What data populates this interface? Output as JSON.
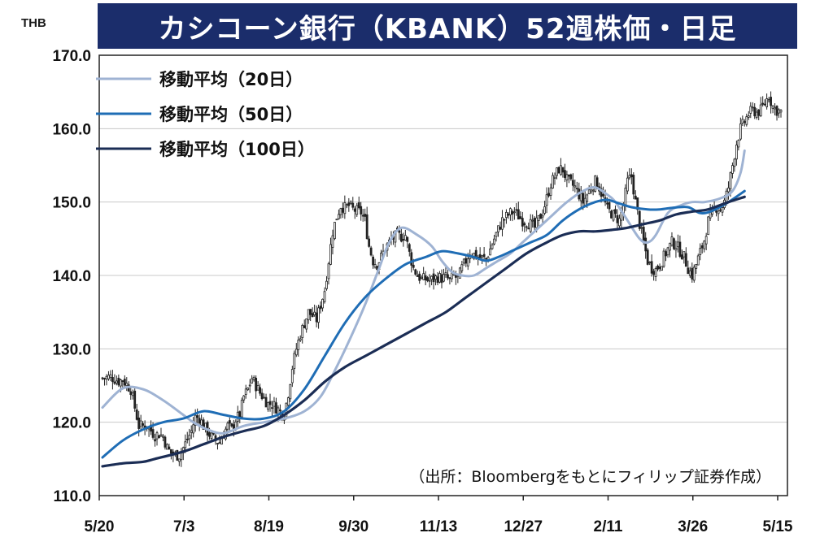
{
  "chart_data": {
    "type": "candlestick",
    "title": "カシコーン銀行（KBANK）52週株価・日足",
    "unit": "THB",
    "ylim": [
      110,
      170
    ],
    "yticks": [
      "170.0",
      "160.0",
      "150.0",
      "140.0",
      "130.0",
      "120.0",
      "110.0"
    ],
    "ytick_values": [
      170,
      160,
      150,
      140,
      130,
      120,
      110
    ],
    "xticks": [
      "5/20",
      "7/3",
      "8/19",
      "9/30",
      "11/13",
      "12/27",
      "2/11",
      "3/26",
      "5/15"
    ],
    "grid": true,
    "legend_position": "top-left",
    "source": "（出所：Bloombergをもとにフィリップ証券作成）",
    "colors": {
      "banner": "#1b2d6b",
      "candle_up": "#ffffff",
      "candle_down": "#222222",
      "ma20": "#9fb3d3",
      "ma50": "#1f6db5",
      "ma100": "#1b2d55",
      "grid": "#c8c8c8"
    },
    "series": [
      {
        "name": "移動平均（20日）",
        "key": "ma20",
        "points": [
          [
            0,
            122
          ],
          [
            10,
            124.6
          ],
          [
            20,
            124.5
          ],
          [
            30,
            123
          ],
          [
            40,
            121
          ],
          [
            45,
            120
          ],
          [
            52,
            119
          ],
          [
            60,
            118.5
          ],
          [
            70,
            119.5
          ],
          [
            80,
            120
          ],
          [
            90,
            120.5
          ],
          [
            100,
            121.5
          ],
          [
            108,
            123.5
          ],
          [
            115,
            127
          ],
          [
            122,
            131
          ],
          [
            130,
            136
          ],
          [
            137,
            141
          ],
          [
            142,
            144.5
          ],
          [
            148,
            146.5
          ],
          [
            156,
            145.5
          ],
          [
            163,
            144
          ],
          [
            168,
            142
          ],
          [
            173,
            140.5
          ],
          [
            178,
            140
          ],
          [
            184,
            140
          ],
          [
            190,
            141
          ],
          [
            196,
            142
          ],
          [
            202,
            143
          ],
          [
            208,
            144.5
          ],
          [
            216,
            146.5
          ],
          [
            222,
            148
          ],
          [
            230,
            150
          ],
          [
            238,
            151.5
          ],
          [
            244,
            152
          ],
          [
            250,
            151
          ],
          [
            254,
            150
          ],
          [
            260,
            147.5
          ],
          [
            266,
            145
          ],
          [
            270,
            144.5
          ],
          [
            274,
            145.5
          ],
          [
            280,
            148.5
          ],
          [
            286,
            149.5
          ],
          [
            292,
            150
          ],
          [
            298,
            150
          ],
          [
            306,
            150.5
          ],
          [
            312,
            151.5
          ],
          [
            316,
            154
          ],
          [
            318,
            157
          ]
        ]
      },
      {
        "name": "移動平均（50日）",
        "key": "ma50",
        "points": [
          [
            0,
            115.2
          ],
          [
            10,
            117.5
          ],
          [
            20,
            119
          ],
          [
            30,
            120
          ],
          [
            40,
            120.5
          ],
          [
            50,
            121.5
          ],
          [
            60,
            121
          ],
          [
            70,
            120.5
          ],
          [
            80,
            120.5
          ],
          [
            90,
            121.5
          ],
          [
            100,
            124.5
          ],
          [
            110,
            129
          ],
          [
            120,
            133.5
          ],
          [
            130,
            137
          ],
          [
            140,
            139.5
          ],
          [
            150,
            141.5
          ],
          [
            160,
            142.5
          ],
          [
            168,
            143.3
          ],
          [
            176,
            143
          ],
          [
            184,
            142.5
          ],
          [
            190,
            142
          ],
          [
            196,
            142.5
          ],
          [
            204,
            143.5
          ],
          [
            212,
            144.5
          ],
          [
            220,
            145.5
          ],
          [
            228,
            147.5
          ],
          [
            236,
            149
          ],
          [
            244,
            150
          ],
          [
            250,
            150.3
          ],
          [
            256,
            149.8
          ],
          [
            262,
            149.3
          ],
          [
            270,
            149
          ],
          [
            276,
            149
          ],
          [
            282,
            149.2
          ],
          [
            290,
            149.3
          ],
          [
            296,
            148.5
          ],
          [
            302,
            148.8
          ],
          [
            310,
            150
          ],
          [
            318,
            151.5
          ]
        ]
      },
      {
        "name": "移動平均（100日）",
        "key": "ma100",
        "points": [
          [
            0,
            114
          ],
          [
            10,
            114.4
          ],
          [
            20,
            114.6
          ],
          [
            26,
            115
          ],
          [
            40,
            116
          ],
          [
            50,
            117
          ],
          [
            60,
            118
          ],
          [
            70,
            118.8
          ],
          [
            80,
            119.5
          ],
          [
            90,
            121
          ],
          [
            100,
            123
          ],
          [
            110,
            125.5
          ],
          [
            120,
            127.5
          ],
          [
            130,
            129
          ],
          [
            140,
            130.5
          ],
          [
            150,
            132
          ],
          [
            160,
            133.5
          ],
          [
            170,
            135
          ],
          [
            180,
            137
          ],
          [
            190,
            139
          ],
          [
            200,
            141
          ],
          [
            210,
            143
          ],
          [
            220,
            144.5
          ],
          [
            228,
            145.5
          ],
          [
            236,
            146
          ],
          [
            244,
            146
          ],
          [
            252,
            146.2
          ],
          [
            260,
            146.5
          ],
          [
            268,
            147
          ],
          [
            276,
            147.5
          ],
          [
            284,
            148.3
          ],
          [
            292,
            148.7
          ],
          [
            300,
            149
          ],
          [
            310,
            150
          ],
          [
            318,
            150.7
          ]
        ]
      }
    ],
    "candles_path": [
      [
        0,
        126
      ],
      [
        4,
        126.2
      ],
      [
        8,
        125.6
      ],
      [
        10,
        125.8
      ],
      [
        14,
        124.5
      ],
      [
        16,
        122
      ],
      [
        18,
        119.5
      ],
      [
        22,
        119.5
      ],
      [
        26,
        118.2
      ],
      [
        28,
        118.4
      ],
      [
        30,
        118.1
      ],
      [
        32,
        116.5
      ],
      [
        34,
        115.8
      ],
      [
        36,
        115.5
      ],
      [
        38,
        115.5
      ],
      [
        40,
        116.5
      ],
      [
        44,
        118.8
      ],
      [
        46,
        120.7
      ],
      [
        48,
        120.6
      ],
      [
        50,
        119.5
      ],
      [
        54,
        118
      ],
      [
        56,
        117.5
      ],
      [
        58,
        117.3
      ],
      [
        60,
        118.5
      ],
      [
        62,
        119.5
      ],
      [
        64,
        119
      ],
      [
        66,
        120.4
      ],
      [
        68,
        121
      ],
      [
        70,
        123.5
      ],
      [
        72,
        124.5
      ],
      [
        74,
        126
      ],
      [
        76,
        125
      ],
      [
        78,
        124
      ],
      [
        82,
        122.5
      ],
      [
        84,
        122.5
      ],
      [
        86,
        122
      ],
      [
        88,
        121.5
      ],
      [
        90,
        121.1
      ],
      [
        92,
        124
      ],
      [
        94,
        127.5
      ],
      [
        96,
        130
      ],
      [
        98,
        132
      ],
      [
        100,
        133.5
      ],
      [
        102,
        135
      ],
      [
        104,
        134.5
      ],
      [
        106,
        134
      ],
      [
        108,
        136
      ],
      [
        110,
        138
      ],
      [
        112,
        142
      ],
      [
        114,
        146
      ],
      [
        116,
        148
      ],
      [
        118,
        149.5
      ],
      [
        120,
        149.2
      ],
      [
        122,
        149.5
      ],
      [
        124,
        149
      ],
      [
        126,
        148.8
      ],
      [
        128,
        148.6
      ],
      [
        130,
        147.5
      ],
      [
        132,
        144
      ],
      [
        134,
        142
      ],
      [
        136,
        141.5
      ],
      [
        138,
        142.5
      ],
      [
        140,
        143.7
      ],
      [
        142,
        144.5
      ],
      [
        144,
        145.1
      ],
      [
        146,
        145.5
      ],
      [
        148,
        145.3
      ],
      [
        150,
        145.5
      ],
      [
        152,
        143
      ],
      [
        154,
        141
      ],
      [
        156,
        140
      ],
      [
        158,
        139.5
      ],
      [
        160,
        139.5
      ],
      [
        162,
        139.3
      ],
      [
        164,
        139.5
      ],
      [
        166,
        139.8
      ],
      [
        168,
        139.6
      ],
      [
        170,
        139.8
      ],
      [
        172,
        139.3
      ],
      [
        174,
        140
      ],
      [
        176,
        139.5
      ],
      [
        178,
        141
      ],
      [
        180,
        142
      ],
      [
        182,
        143.2
      ],
      [
        186,
        142.5
      ],
      [
        190,
        142.2
      ],
      [
        194,
        145
      ],
      [
        198,
        147.5
      ],
      [
        202,
        148.5
      ],
      [
        204,
        148.7
      ],
      [
        208,
        147.5
      ],
      [
        212,
        147
      ],
      [
        214,
        146.5
      ],
      [
        218,
        148.7
      ],
      [
        220,
        150.5
      ],
      [
        222,
        152.5
      ],
      [
        226,
        154.5
      ],
      [
        228,
        154.4
      ],
      [
        230,
        153
      ],
      [
        232,
        152.5
      ],
      [
        234,
        152
      ],
      [
        236,
        151
      ],
      [
        238,
        150
      ],
      [
        240,
        151
      ],
      [
        242,
        152
      ],
      [
        244,
        152.8
      ],
      [
        246,
        152
      ],
      [
        248,
        150.5
      ],
      [
        250,
        149
      ],
      [
        254,
        148
      ],
      [
        256,
        147.5
      ],
      [
        258,
        149.5
      ],
      [
        260,
        152.8
      ],
      [
        262,
        153.5
      ],
      [
        264,
        150
      ],
      [
        266,
        147
      ],
      [
        268,
        144.5
      ],
      [
        270,
        142
      ],
      [
        272,
        141
      ],
      [
        274,
        140.8
      ],
      [
        276,
        141.5
      ],
      [
        280,
        143.6
      ],
      [
        282,
        144.5
      ],
      [
        284,
        144.2
      ],
      [
        288,
        142.5
      ],
      [
        290,
        141
      ],
      [
        292,
        140
      ],
      [
        294,
        141.5
      ],
      [
        298,
        144.8
      ],
      [
        300,
        147.4
      ],
      [
        302,
        148.5
      ],
      [
        304,
        149.3
      ],
      [
        306,
        149
      ],
      [
        308,
        150
      ],
      [
        310,
        152
      ],
      [
        312,
        155
      ],
      [
        314,
        158
      ],
      [
        316,
        160
      ],
      [
        318,
        161
      ],
      [
        320,
        162
      ],
      [
        322,
        162.5
      ],
      [
        324,
        162.2
      ],
      [
        326,
        162.5
      ],
      [
        328,
        163.5
      ],
      [
        330,
        164.5
      ],
      [
        332,
        163
      ],
      [
        334,
        162.5
      ],
      [
        336,
        162.3
      ]
    ]
  }
}
